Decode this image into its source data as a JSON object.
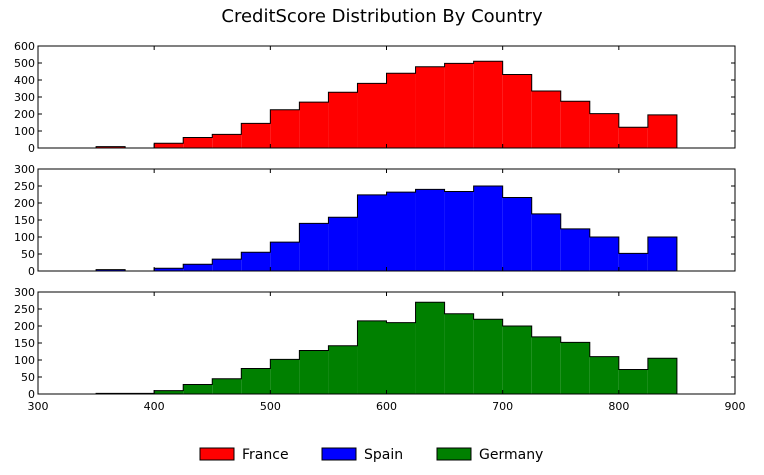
{
  "chart_data": {
    "type": "bar",
    "title": "CreditScore Distribution By Country",
    "xlim": [
      300,
      900
    ],
    "x_ticks": [
      "300",
      "400",
      "500",
      "600",
      "700",
      "800",
      "900"
    ],
    "bin_edges": [
      350,
      375,
      400,
      425,
      450,
      475,
      500,
      525,
      550,
      575,
      600,
      625,
      650,
      675,
      700,
      725,
      750,
      775,
      800,
      825,
      850
    ],
    "series": [
      {
        "name": "France",
        "color": "#ff0000",
        "ylim": [
          0,
          600
        ],
        "y_ticks": [
          "0",
          "100",
          "200",
          "300",
          "400",
          "500",
          "600"
        ],
        "values": [
          8,
          0,
          28,
          62,
          80,
          145,
          225,
          270,
          328,
          380,
          440,
          478,
          498,
          510,
          432,
          335,
          275,
          202,
          122,
          195
        ]
      },
      {
        "name": "Spain",
        "color": "#0000ff",
        "ylim": [
          0,
          300
        ],
        "y_ticks": [
          "0",
          "50",
          "100",
          "150",
          "200",
          "250",
          "300"
        ],
        "values": [
          4,
          0,
          8,
          20,
          35,
          55,
          85,
          140,
          158,
          224,
          232,
          240,
          234,
          250,
          216,
          168,
          124,
          100,
          52,
          100
        ]
      },
      {
        "name": "Germany",
        "color": "#008000",
        "ylim": [
          0,
          300
        ],
        "y_ticks": [
          "0",
          "50",
          "100",
          "150",
          "200",
          "250",
          "300"
        ],
        "values": [
          2,
          2,
          10,
          28,
          45,
          75,
          102,
          128,
          142,
          215,
          210,
          270,
          236,
          220,
          200,
          168,
          152,
          110,
          72,
          105
        ]
      }
    ],
    "legend_position": "bottom-center",
    "grid": false
  }
}
